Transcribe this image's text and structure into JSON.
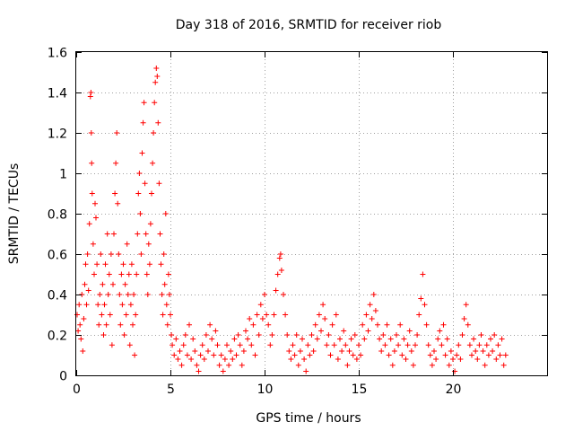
{
  "chart_data": {
    "type": "scatter",
    "title": "Day 318 of 2016, SRMTID for receiver riob",
    "xlabel": "GPS time / hours",
    "ylabel": "SRMTID / TECUs",
    "xlim": [
      0,
      25
    ],
    "ylim": [
      0,
      1.6
    ],
    "xticks": [
      0,
      5,
      10,
      15,
      20
    ],
    "xtick_labels": [
      "0",
      "5",
      "10",
      "15",
      "20"
    ],
    "yticks": [
      0,
      0.2,
      0.4,
      0.6,
      0.8,
      1.0,
      1.2,
      1.4,
      1.6
    ],
    "ytick_labels": [
      "0",
      "0.2",
      "0.4",
      "0.6",
      "0.8",
      "1",
      "1.2",
      "1.4",
      "1.6"
    ],
    "grid": true,
    "marker": "+",
    "marker_color": "#ff0000",
    "series": [
      {
        "name": "SRMTID",
        "points": [
          [
            0.05,
            0.3
          ],
          [
            0.1,
            0.22
          ],
          [
            0.15,
            0.35
          ],
          [
            0.2,
            0.25
          ],
          [
            0.25,
            0.18
          ],
          [
            0.3,
            0.4
          ],
          [
            0.35,
            0.12
          ],
          [
            0.4,
            0.28
          ],
          [
            0.45,
            0.45
          ],
          [
            0.5,
            0.55
          ],
          [
            0.55,
            0.35
          ],
          [
            0.6,
            0.6
          ],
          [
            0.65,
            0.42
          ],
          [
            0.7,
            0.75
          ],
          [
            0.75,
            1.38
          ],
          [
            0.78,
            1.4
          ],
          [
            0.8,
            1.2
          ],
          [
            0.82,
            1.05
          ],
          [
            0.85,
            0.9
          ],
          [
            0.9,
            0.65
          ],
          [
            0.95,
            0.5
          ],
          [
            1.0,
            0.85
          ],
          [
            1.05,
            0.78
          ],
          [
            1.1,
            0.55
          ],
          [
            1.15,
            0.35
          ],
          [
            1.2,
            0.25
          ],
          [
            1.25,
            0.4
          ],
          [
            1.3,
            0.6
          ],
          [
            1.35,
            0.3
          ],
          [
            1.4,
            0.45
          ],
          [
            1.45,
            0.2
          ],
          [
            1.5,
            0.35
          ],
          [
            1.55,
            0.55
          ],
          [
            1.6,
            0.25
          ],
          [
            1.65,
            0.7
          ],
          [
            1.7,
            0.4
          ],
          [
            1.75,
            0.5
          ],
          [
            1.8,
            0.3
          ],
          [
            1.85,
            0.6
          ],
          [
            1.9,
            0.15
          ],
          [
            1.95,
            0.45
          ],
          [
            2.0,
            0.7
          ],
          [
            2.05,
            0.9
          ],
          [
            2.1,
            1.05
          ],
          [
            2.15,
            1.2
          ],
          [
            2.2,
            0.85
          ],
          [
            2.25,
            0.6
          ],
          [
            2.3,
            0.4
          ],
          [
            2.35,
            0.25
          ],
          [
            2.4,
            0.5
          ],
          [
            2.45,
            0.35
          ],
          [
            2.5,
            0.55
          ],
          [
            2.55,
            0.2
          ],
          [
            2.6,
            0.45
          ],
          [
            2.65,
            0.3
          ],
          [
            2.7,
            0.65
          ],
          [
            2.75,
            0.4
          ],
          [
            2.8,
            0.5
          ],
          [
            2.85,
            0.15
          ],
          [
            2.9,
            0.35
          ],
          [
            2.95,
            0.55
          ],
          [
            3.0,
            0.25
          ],
          [
            3.05,
            0.4
          ],
          [
            3.1,
            0.1
          ],
          [
            3.15,
            0.3
          ],
          [
            3.2,
            0.5
          ],
          [
            3.25,
            0.7
          ],
          [
            3.3,
            0.9
          ],
          [
            3.35,
            1.0
          ],
          [
            3.4,
            0.8
          ],
          [
            3.45,
            0.6
          ],
          [
            3.5,
            1.1
          ],
          [
            3.55,
            1.25
          ],
          [
            3.6,
            1.35
          ],
          [
            3.65,
            0.95
          ],
          [
            3.7,
            0.7
          ],
          [
            3.75,
            0.5
          ],
          [
            3.8,
            0.4
          ],
          [
            3.85,
            0.65
          ],
          [
            3.9,
            0.55
          ],
          [
            3.95,
            0.75
          ],
          [
            4.0,
            0.9
          ],
          [
            4.05,
            1.05
          ],
          [
            4.1,
            1.2
          ],
          [
            4.15,
            1.35
          ],
          [
            4.2,
            1.45
          ],
          [
            4.25,
            1.52
          ],
          [
            4.3,
            1.48
          ],
          [
            4.35,
            1.25
          ],
          [
            4.4,
            0.95
          ],
          [
            4.45,
            0.7
          ],
          [
            4.5,
            0.55
          ],
          [
            4.55,
            0.4
          ],
          [
            4.6,
            0.3
          ],
          [
            4.65,
            0.6
          ],
          [
            4.7,
            0.45
          ],
          [
            4.75,
            0.8
          ],
          [
            4.8,
            0.35
          ],
          [
            4.85,
            0.25
          ],
          [
            4.9,
            0.5
          ],
          [
            4.95,
            0.4
          ],
          [
            5.0,
            0.3
          ],
          [
            5.05,
            0.2
          ],
          [
            5.1,
            0.15
          ],
          [
            5.2,
            0.1
          ],
          [
            5.3,
            0.18
          ],
          [
            5.4,
            0.08
          ],
          [
            5.5,
            0.12
          ],
          [
            5.6,
            0.05
          ],
          [
            5.7,
            0.15
          ],
          [
            5.8,
            0.2
          ],
          [
            5.9,
            0.1
          ],
          [
            6.0,
            0.25
          ],
          [
            6.1,
            0.08
          ],
          [
            6.2,
            0.18
          ],
          [
            6.3,
            0.12
          ],
          [
            6.4,
            0.05
          ],
          [
            6.5,
            0.02
          ],
          [
            6.6,
            0.1
          ],
          [
            6.7,
            0.15
          ],
          [
            6.8,
            0.08
          ],
          [
            6.9,
            0.2
          ],
          [
            7.0,
            0.12
          ],
          [
            7.1,
            0.25
          ],
          [
            7.2,
            0.18
          ],
          [
            7.3,
            0.1
          ],
          [
            7.4,
            0.22
          ],
          [
            7.5,
            0.15
          ],
          [
            7.6,
            0.05
          ],
          [
            7.7,
            0.1
          ],
          [
            7.8,
            0.02
          ],
          [
            7.9,
            0.08
          ],
          [
            8.0,
            0.15
          ],
          [
            8.1,
            0.05
          ],
          [
            8.2,
            0.12
          ],
          [
            8.3,
            0.08
          ],
          [
            8.4,
            0.18
          ],
          [
            8.5,
            0.1
          ],
          [
            8.6,
            0.2
          ],
          [
            8.7,
            0.15
          ],
          [
            8.8,
            0.05
          ],
          [
            8.9,
            0.12
          ],
          [
            9.0,
            0.22
          ],
          [
            9.1,
            0.18
          ],
          [
            9.2,
            0.28
          ],
          [
            9.3,
            0.15
          ],
          [
            9.4,
            0.25
          ],
          [
            9.5,
            0.1
          ],
          [
            9.6,
            0.3
          ],
          [
            9.7,
            0.2
          ],
          [
            9.8,
            0.35
          ],
          [
            9.9,
            0.28
          ],
          [
            10.0,
            0.4
          ],
          [
            10.1,
            0.3
          ],
          [
            10.2,
            0.25
          ],
          [
            10.3,
            0.15
          ],
          [
            10.4,
            0.2
          ],
          [
            10.5,
            0.3
          ],
          [
            10.6,
            0.42
          ],
          [
            10.7,
            0.5
          ],
          [
            10.8,
            0.58
          ],
          [
            10.85,
            0.6
          ],
          [
            10.9,
            0.52
          ],
          [
            11.0,
            0.4
          ],
          [
            11.1,
            0.3
          ],
          [
            11.2,
            0.2
          ],
          [
            11.3,
            0.12
          ],
          [
            11.4,
            0.08
          ],
          [
            11.5,
            0.15
          ],
          [
            11.6,
            0.1
          ],
          [
            11.7,
            0.2
          ],
          [
            11.8,
            0.05
          ],
          [
            11.9,
            0.12
          ],
          [
            12.0,
            0.18
          ],
          [
            12.1,
            0.08
          ],
          [
            12.2,
            0.02
          ],
          [
            12.3,
            0.15
          ],
          [
            12.4,
            0.1
          ],
          [
            12.5,
            0.2
          ],
          [
            12.6,
            0.12
          ],
          [
            12.7,
            0.25
          ],
          [
            12.8,
            0.18
          ],
          [
            12.9,
            0.3
          ],
          [
            13.0,
            0.22
          ],
          [
            13.1,
            0.35
          ],
          [
            13.2,
            0.28
          ],
          [
            13.3,
            0.15
          ],
          [
            13.4,
            0.2
          ],
          [
            13.5,
            0.1
          ],
          [
            13.6,
            0.25
          ],
          [
            13.7,
            0.15
          ],
          [
            13.8,
            0.3
          ],
          [
            13.9,
            0.08
          ],
          [
            14.0,
            0.18
          ],
          [
            14.1,
            0.12
          ],
          [
            14.2,
            0.22
          ],
          [
            14.3,
            0.15
          ],
          [
            14.4,
            0.05
          ],
          [
            14.5,
            0.12
          ],
          [
            14.6,
            0.18
          ],
          [
            14.7,
            0.1
          ],
          [
            14.8,
            0.2
          ],
          [
            14.9,
            0.08
          ],
          [
            15.0,
            0.15
          ],
          [
            15.1,
            0.1
          ],
          [
            15.2,
            0.25
          ],
          [
            15.3,
            0.18
          ],
          [
            15.4,
            0.3
          ],
          [
            15.5,
            0.22
          ],
          [
            15.6,
            0.35
          ],
          [
            15.7,
            0.28
          ],
          [
            15.8,
            0.4
          ],
          [
            15.9,
            0.32
          ],
          [
            16.0,
            0.25
          ],
          [
            16.1,
            0.18
          ],
          [
            16.2,
            0.12
          ],
          [
            16.3,
            0.2
          ],
          [
            16.4,
            0.15
          ],
          [
            16.5,
            0.25
          ],
          [
            16.6,
            0.1
          ],
          [
            16.7,
            0.18
          ],
          [
            16.8,
            0.05
          ],
          [
            16.9,
            0.12
          ],
          [
            17.0,
            0.2
          ],
          [
            17.1,
            0.15
          ],
          [
            17.2,
            0.25
          ],
          [
            17.3,
            0.1
          ],
          [
            17.4,
            0.18
          ],
          [
            17.5,
            0.08
          ],
          [
            17.6,
            0.15
          ],
          [
            17.7,
            0.22
          ],
          [
            17.8,
            0.12
          ],
          [
            17.9,
            0.05
          ],
          [
            18.0,
            0.15
          ],
          [
            18.1,
            0.2
          ],
          [
            18.2,
            0.3
          ],
          [
            18.3,
            0.38
          ],
          [
            18.4,
            0.5
          ],
          [
            18.5,
            0.35
          ],
          [
            18.6,
            0.25
          ],
          [
            18.7,
            0.15
          ],
          [
            18.8,
            0.1
          ],
          [
            18.9,
            0.05
          ],
          [
            19.0,
            0.12
          ],
          [
            19.1,
            0.08
          ],
          [
            19.2,
            0.18
          ],
          [
            19.3,
            0.22
          ],
          [
            19.4,
            0.15
          ],
          [
            19.5,
            0.25
          ],
          [
            19.6,
            0.1
          ],
          [
            19.7,
            0.18
          ],
          [
            19.8,
            0.05
          ],
          [
            19.9,
            0.12
          ],
          [
            20.0,
            0.08
          ],
          [
            20.1,
            0.02
          ],
          [
            20.2,
            0.1
          ],
          [
            20.3,
            0.15
          ],
          [
            20.4,
            0.08
          ],
          [
            20.5,
            0.2
          ],
          [
            20.6,
            0.28
          ],
          [
            20.7,
            0.35
          ],
          [
            20.8,
            0.25
          ],
          [
            20.9,
            0.15
          ],
          [
            21.0,
            0.1
          ],
          [
            21.1,
            0.18
          ],
          [
            21.2,
            0.12
          ],
          [
            21.3,
            0.08
          ],
          [
            21.4,
            0.15
          ],
          [
            21.5,
            0.2
          ],
          [
            21.6,
            0.12
          ],
          [
            21.7,
            0.05
          ],
          [
            21.8,
            0.15
          ],
          [
            21.9,
            0.1
          ],
          [
            22.0,
            0.18
          ],
          [
            22.1,
            0.12
          ],
          [
            22.2,
            0.2
          ],
          [
            22.3,
            0.08
          ],
          [
            22.4,
            0.15
          ],
          [
            22.5,
            0.1
          ],
          [
            22.6,
            0.18
          ],
          [
            22.7,
            0.05
          ],
          [
            22.8,
            0.1
          ]
        ]
      }
    ]
  }
}
